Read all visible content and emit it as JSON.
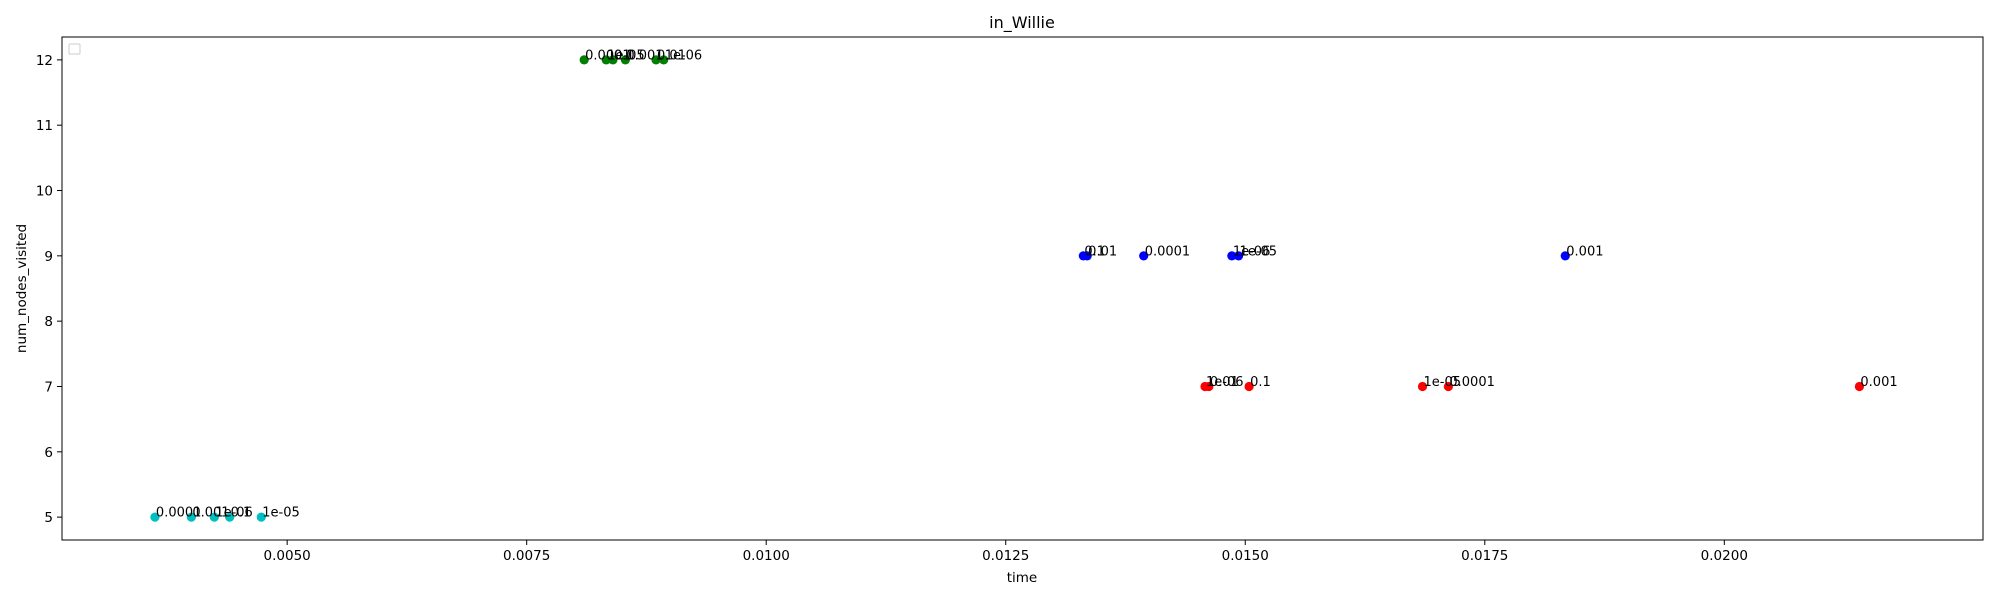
{
  "chart_data": {
    "type": "scatter",
    "title": "in_Willie",
    "xlabel": "time",
    "ylabel": "num_nodes_visited",
    "xlim": [
      0.00265,
      0.0227
    ],
    "ylim": [
      4.65,
      12.35
    ],
    "xticks": [
      "0.0050",
      "0.0075",
      "0.0100",
      "0.0125",
      "0.0150",
      "0.0175",
      "0.0200"
    ],
    "xtick_values": [
      0.005,
      0.0075,
      0.01,
      0.0125,
      0.015,
      0.0175,
      0.02
    ],
    "yticks": [
      "5",
      "6",
      "7",
      "8",
      "9",
      "10",
      "11",
      "12"
    ],
    "ytick_values": [
      5,
      6,
      7,
      8,
      9,
      10,
      11,
      12
    ],
    "grid": false,
    "legend": "top-left (empty)",
    "series": [
      {
        "color": "#00bfbf",
        "points": [
          {
            "x": 0.00362,
            "y": 5,
            "label": "0.0001"
          },
          {
            "x": 0.004,
            "y": 5,
            "label": "0.001"
          },
          {
            "x": 0.00424,
            "y": 5,
            "label": "1e-06"
          },
          {
            "x": 0.0044,
            "y": 5,
            "label": "0.1"
          },
          {
            "x": 0.00473,
            "y": 5,
            "label": "1e-05"
          }
        ]
      },
      {
        "color": "#008000",
        "points": [
          {
            "x": 0.0081,
            "y": 12,
            "label": "0.0001"
          },
          {
            "x": 0.00833,
            "y": 12,
            "label": "1e-05"
          },
          {
            "x": 0.0084,
            "y": 12,
            "label": "0.1"
          },
          {
            "x": 0.00853,
            "y": 12,
            "label": "0.001"
          },
          {
            "x": 0.00885,
            "y": 12,
            "label": "0.01"
          },
          {
            "x": 0.00893,
            "y": 12,
            "label": "1e-06"
          }
        ]
      },
      {
        "color": "#0000ff",
        "points": [
          {
            "x": 0.01331,
            "y": 9,
            "label": "0.1"
          },
          {
            "x": 0.01335,
            "y": 9,
            "label": "0.01"
          },
          {
            "x": 0.01394,
            "y": 9,
            "label": "0.0001"
          },
          {
            "x": 0.01486,
            "y": 9,
            "label": "1e-06"
          },
          {
            "x": 0.01493,
            "y": 9,
            "label": "1e-05"
          },
          {
            "x": 0.01834,
            "y": 9,
            "label": "0.001"
          }
        ]
      },
      {
        "color": "#ff0000",
        "points": [
          {
            "x": 0.01458,
            "y": 7,
            "label": "1e-06"
          },
          {
            "x": 0.01462,
            "y": 7,
            "label": "0.01"
          },
          {
            "x": 0.01504,
            "y": 7,
            "label": "0.1"
          },
          {
            "x": 0.01685,
            "y": 7,
            "label": "1e-05"
          },
          {
            "x": 0.01712,
            "y": 7,
            "label": "0.0001"
          },
          {
            "x": 0.02141,
            "y": 7,
            "label": "0.001"
          }
        ]
      }
    ]
  }
}
